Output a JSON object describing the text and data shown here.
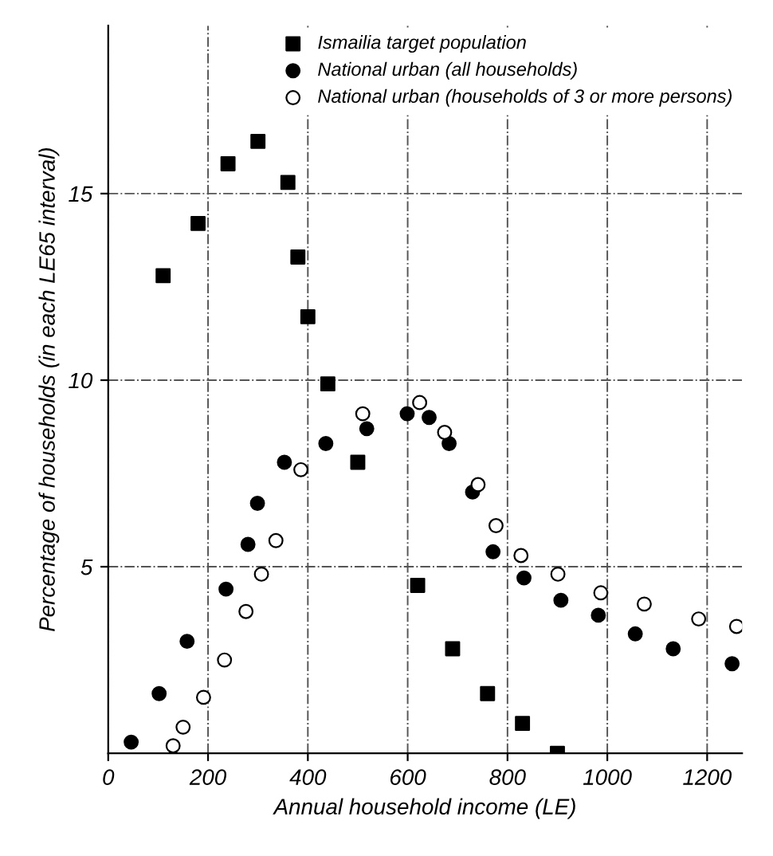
{
  "chart_data": {
    "type": "scatter",
    "xlabel": "Annual household income (LE)",
    "ylabel": "Percentage of households (in each LE65 interval)",
    "xlim": [
      0,
      1270
    ],
    "ylim": [
      0,
      19.5
    ],
    "xticks": [
      0,
      200,
      400,
      600,
      800,
      1000,
      1200
    ],
    "yticks": [
      5,
      10,
      15
    ],
    "grid": true,
    "legend": "top right",
    "series": [
      {
        "name": "Ismailia target population",
        "color": "#000000",
        "marker": "square",
        "x": [
          110,
          180,
          240,
          300,
          360,
          380,
          400,
          440,
          500,
          620,
          690,
          760,
          830,
          900
        ],
        "values": [
          12.8,
          14.2,
          15.8,
          16.4,
          15.3,
          13.3,
          11.7,
          9.9,
          7.8,
          4.5,
          2.8,
          1.6,
          0.8,
          0
        ]
      },
      {
        "name": "National urban (all households)",
        "color": "#000000",
        "marker": "circle",
        "x": [
          46,
          102,
          158,
          236,
          280,
          299,
          353,
          436,
          518,
          599,
          643,
          683,
          730,
          771,
          833,
          907,
          982,
          1056,
          1132,
          1250
        ],
        "values": [
          0.3,
          1.6,
          3.0,
          4.4,
          5.6,
          6.7,
          7.8,
          8.3,
          8.7,
          9.1,
          9.0,
          8.3,
          7.0,
          5.4,
          4.7,
          4.1,
          3.7,
          3.2,
          2.8,
          2.4
        ]
      },
      {
        "name": "National urban (households of 3 or more persons)",
        "color": "#ffffff",
        "marker": "circle",
        "x": [
          130,
          150,
          191,
          233,
          276,
          307,
          336,
          386,
          510,
          624,
          674,
          741,
          777,
          827,
          901,
          987,
          1074,
          1183,
          1259
        ],
        "values": [
          0.2,
          0.7,
          1.5,
          2.5,
          3.8,
          4.8,
          5.7,
          7.6,
          9.1,
          9.4,
          8.6,
          7.2,
          6.1,
          5.3,
          4.8,
          4.3,
          4.0,
          3.6,
          3.4
        ]
      }
    ]
  }
}
